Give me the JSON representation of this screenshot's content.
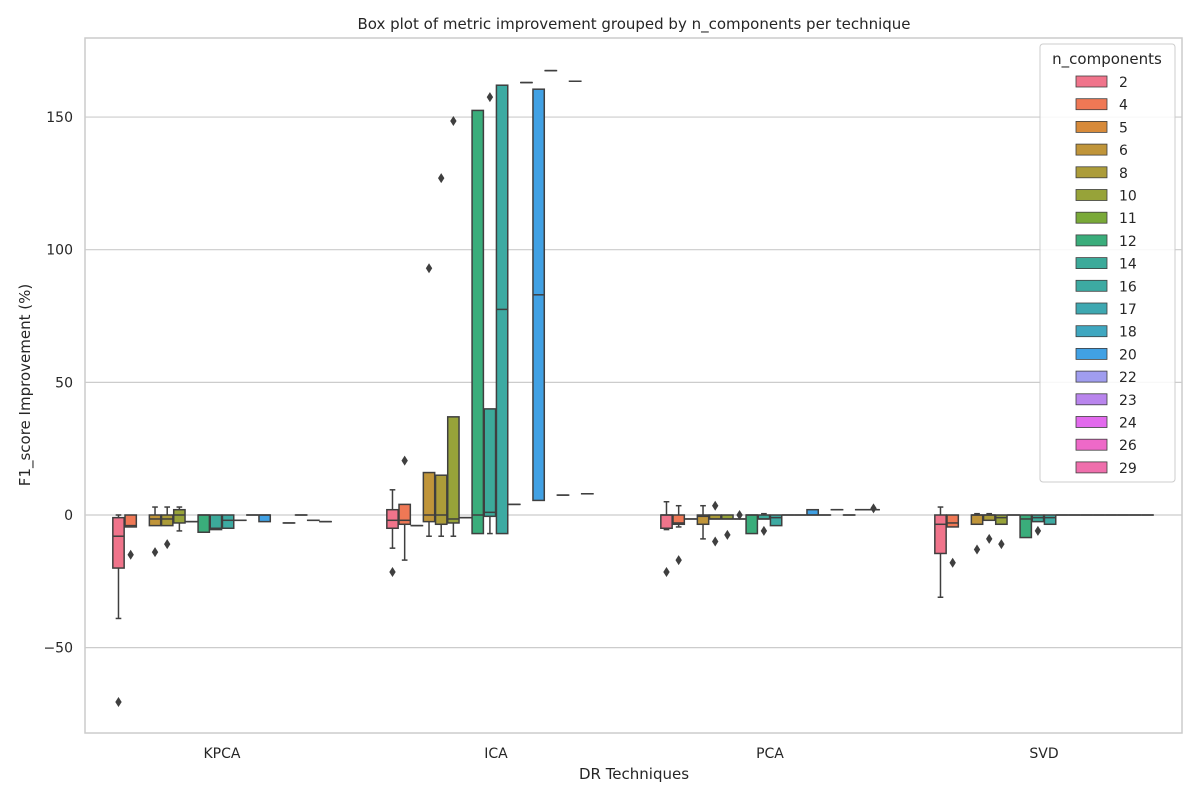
{
  "chart_data": {
    "type": "box",
    "title": "Box plot of metric improvement grouped by n_components per technique",
    "xlabel": "DR Techniques",
    "ylabel": "F1_score Improvement (%)",
    "ylim": [
      -82,
      180
    ],
    "yticks": [
      -50,
      0,
      50,
      100,
      150
    ],
    "ytick_labels": [
      "−50",
      "0",
      "50",
      "100",
      "150"
    ],
    "grid": true,
    "legend": {
      "title": "n_components",
      "placement": "top-right",
      "entries": [
        {
          "label": "2",
          "color": "#f77189"
        },
        {
          "label": "4",
          "color": "#f7754f"
        },
        {
          "label": "5",
          "color": "#dc8932"
        },
        {
          "label": "6",
          "color": "#c39532"
        },
        {
          "label": "8",
          "color": "#ae9d31"
        },
        {
          "label": "10",
          "color": "#97a431"
        },
        {
          "label": "11",
          "color": "#77ab31"
        },
        {
          "label": "12",
          "color": "#33b07a"
        },
        {
          "label": "14",
          "color": "#35ad9c"
        },
        {
          "label": "16",
          "color": "#36ada4"
        },
        {
          "label": "17",
          "color": "#37abb4"
        },
        {
          "label": "18",
          "color": "#38a9c5"
        },
        {
          "label": "20",
          "color": "#3ba3ec"
        },
        {
          "label": "22",
          "color": "#9f9cf5"
        },
        {
          "label": "23",
          "color": "#bb83f4"
        },
        {
          "label": "24",
          "color": "#e866f4"
        },
        {
          "label": "26",
          "color": "#f565cc"
        },
        {
          "label": "29",
          "color": "#f66bad"
        }
      ]
    },
    "categories": [
      "KPCA",
      "ICA",
      "PCA",
      "SVD"
    ],
    "groups": [
      {
        "technique": "KPCA",
        "boxes": [
          {
            "n": "2",
            "min": -39,
            "q1": -20,
            "median": -8,
            "q3": -1,
            "max": 0,
            "outliers": [
              -70.5
            ]
          },
          {
            "n": "4",
            "min": -4.5,
            "q1": -4.5,
            "median": -4,
            "q3": 0,
            "max": 0,
            "outliers": [
              -15
            ]
          },
          {
            "n": "6",
            "min": -4,
            "q1": -4,
            "median": -1.5,
            "q3": 0,
            "max": 3,
            "outliers": [
              -14
            ]
          },
          {
            "n": "8",
            "min": -4,
            "q1": -4,
            "median": -1.5,
            "q3": 0,
            "max": 3,
            "outliers": [
              -11
            ]
          },
          {
            "n": "10",
            "min": -6,
            "q1": -3,
            "median": 0,
            "q3": 2,
            "max": 3,
            "outliers": []
          },
          {
            "n": "11",
            "min": -2.5,
            "q1": -2.5,
            "median": -2.5,
            "q3": -2.5,
            "max": -2.5,
            "outliers": []
          },
          {
            "n": "12",
            "min": -6.5,
            "q1": -6.5,
            "median": 0,
            "q3": 0,
            "max": 0,
            "outliers": []
          },
          {
            "n": "14",
            "min": -5.5,
            "q1": -5.5,
            "median": -5,
            "q3": 0,
            "max": 0,
            "outliers": []
          },
          {
            "n": "16",
            "min": -5,
            "q1": -5,
            "median": -2,
            "q3": 0,
            "max": 0,
            "outliers": []
          },
          {
            "n": "17",
            "min": -2,
            "q1": -2,
            "median": -2,
            "q3": -2,
            "max": -2,
            "outliers": []
          },
          {
            "n": "18",
            "min": 0,
            "q1": 0,
            "median": 0,
            "q3": 0,
            "max": 0,
            "outliers": []
          },
          {
            "n": "20",
            "min": -2.5,
            "q1": -2.5,
            "median": 0,
            "q3": 0,
            "max": 0,
            "outliers": []
          },
          {
            "n": "23",
            "min": -3,
            "q1": -3,
            "median": -3,
            "q3": -3,
            "max": -3,
            "outliers": []
          },
          {
            "n": "24",
            "min": 0,
            "q1": 0,
            "median": 0,
            "q3": 0,
            "max": 0,
            "outliers": []
          },
          {
            "n": "26",
            "min": -2,
            "q1": -2,
            "median": -2,
            "q3": -2,
            "max": -2,
            "outliers": []
          },
          {
            "n": "29",
            "min": -2.5,
            "q1": -2.5,
            "median": -2.5,
            "q3": -2.5,
            "max": -2.5,
            "outliers": []
          }
        ]
      },
      {
        "technique": "ICA",
        "boxes": [
          {
            "n": "2",
            "min": -12.5,
            "q1": -5,
            "median": -2,
            "q3": 2,
            "max": 9.5,
            "outliers": [
              -21.5
            ]
          },
          {
            "n": "4",
            "min": -17,
            "q1": -3.5,
            "median": -2,
            "q3": 4,
            "max": 4,
            "outliers": [
              20.5
            ]
          },
          {
            "n": "5",
            "min": -4,
            "q1": -4,
            "median": -4,
            "q3": -4,
            "max": -4,
            "outliers": []
          },
          {
            "n": "6",
            "min": -8,
            "q1": -2.5,
            "median": 0,
            "q3": 16,
            "max": 16,
            "outliers": [
              93
            ]
          },
          {
            "n": "8",
            "min": -8,
            "q1": -3.5,
            "median": 0,
            "q3": 15,
            "max": 15,
            "outliers": [
              127
            ]
          },
          {
            "n": "10",
            "min": -8,
            "q1": -3,
            "median": -1.5,
            "q3": 37,
            "max": 37,
            "outliers": [
              148.5
            ]
          },
          {
            "n": "11",
            "min": -1,
            "q1": -1,
            "median": -1,
            "q3": -1,
            "max": -1,
            "outliers": []
          },
          {
            "n": "12",
            "min": -7,
            "q1": -7,
            "median": 0,
            "q3": 152.5,
            "max": 152.5,
            "outliers": []
          },
          {
            "n": "14",
            "min": -7,
            "q1": -0.5,
            "median": 1,
            "q3": 40,
            "max": 40,
            "outliers": [
              157.5
            ]
          },
          {
            "n": "16",
            "min": -7,
            "q1": -7,
            "median": 77.5,
            "q3": 162,
            "max": 162,
            "outliers": []
          },
          {
            "n": "17",
            "min": 4,
            "q1": 4,
            "median": 4,
            "q3": 4,
            "max": 4,
            "outliers": []
          },
          {
            "n": "18",
            "min": 163,
            "q1": 163,
            "median": 163,
            "q3": 163,
            "max": 163,
            "outliers": []
          },
          {
            "n": "20",
            "min": 5.5,
            "q1": 5.5,
            "median": 83,
            "q3": 160.5,
            "max": 160.5,
            "outliers": []
          },
          {
            "n": "22",
            "min": 167.5,
            "q1": 167.5,
            "median": 167.5,
            "q3": 167.5,
            "max": 167.5,
            "outliers": []
          },
          {
            "n": "23",
            "min": 7.5,
            "q1": 7.5,
            "median": 7.5,
            "q3": 7.5,
            "max": 7.5,
            "outliers": []
          },
          {
            "n": "24",
            "min": 163.5,
            "q1": 163.5,
            "median": 163.5,
            "q3": 163.5,
            "max": 163.5,
            "outliers": []
          },
          {
            "n": "26",
            "min": 8,
            "q1": 8,
            "median": 8,
            "q3": 8,
            "max": 8,
            "outliers": []
          }
        ]
      },
      {
        "technique": "PCA",
        "boxes": [
          {
            "n": "2",
            "min": -5.5,
            "q1": -5,
            "median": 0,
            "q3": 0,
            "max": 5,
            "outliers": [
              -21.5
            ]
          },
          {
            "n": "4",
            "min": -4.5,
            "q1": -3.5,
            "median": -3,
            "q3": 0,
            "max": 3.5,
            "outliers": [
              -17
            ]
          },
          {
            "n": "5",
            "min": -1.5,
            "q1": -1.5,
            "median": -1.5,
            "q3": -1.5,
            "max": -1.5,
            "outliers": []
          },
          {
            "n": "6",
            "min": -9,
            "q1": -3.5,
            "median": -0.5,
            "q3": 0,
            "max": 3.5,
            "outliers": []
          },
          {
            "n": "8",
            "min": -1.5,
            "q1": -1.5,
            "median": -1.5,
            "q3": 0,
            "max": 0,
            "outliers": [
              3.5,
              -10
            ]
          },
          {
            "n": "10",
            "min": -1.5,
            "q1": -1.5,
            "median": -1.5,
            "q3": 0,
            "max": 0,
            "outliers": [
              -7.5
            ]
          },
          {
            "n": "11",
            "min": -1.5,
            "q1": -1.5,
            "median": -1.5,
            "q3": -1.5,
            "max": -1.5,
            "outliers": [
              0
            ]
          },
          {
            "n": "12",
            "min": -7,
            "q1": -7,
            "median": 0,
            "q3": 0,
            "max": 0,
            "outliers": []
          },
          {
            "n": "14",
            "min": -1.5,
            "q1": -1.5,
            "median": -1.5,
            "q3": 0,
            "max": 0.5,
            "outliers": [
              -6
            ]
          },
          {
            "n": "16",
            "min": -4,
            "q1": -4,
            "median": -1,
            "q3": 0,
            "max": 0,
            "outliers": []
          },
          {
            "n": "17",
            "min": 0,
            "q1": 0,
            "median": 0,
            "q3": 0,
            "max": 0,
            "outliers": []
          },
          {
            "n": "18",
            "min": 0,
            "q1": 0,
            "median": 0,
            "q3": 0,
            "max": 0,
            "outliers": []
          },
          {
            "n": "20",
            "min": 0,
            "q1": 0,
            "median": 0,
            "q3": 2,
            "max": 2,
            "outliers": []
          },
          {
            "n": "22",
            "min": 0,
            "q1": 0,
            "median": 0,
            "q3": 0,
            "max": 0,
            "outliers": []
          },
          {
            "n": "23",
            "min": 2,
            "q1": 2,
            "median": 2,
            "q3": 2,
            "max": 2,
            "outliers": []
          },
          {
            "n": "24",
            "min": 0,
            "q1": 0,
            "median": 0,
            "q3": 0,
            "max": 0,
            "outliers": []
          },
          {
            "n": "26",
            "min": 2,
            "q1": 2,
            "median": 2,
            "q3": 2,
            "max": 2,
            "outliers": []
          },
          {
            "n": "29",
            "min": 2,
            "q1": 2,
            "median": 2,
            "q3": 2,
            "max": 2,
            "outliers": [
              2.5
            ]
          }
        ]
      },
      {
        "technique": "SVD",
        "boxes": [
          {
            "n": "2",
            "min": -31,
            "q1": -14.5,
            "median": -3.5,
            "q3": 0,
            "max": 3,
            "outliers": []
          },
          {
            "n": "4",
            "min": -4.5,
            "q1": -4.5,
            "median": -3,
            "q3": 0,
            "max": 0,
            "outliers": [
              -18
            ]
          },
          {
            "n": "6",
            "min": -3.5,
            "q1": -3.5,
            "median": 0,
            "q3": 0,
            "max": 0.5,
            "outliers": [
              -13
            ]
          },
          {
            "n": "8",
            "min": -2,
            "q1": -2,
            "median": 0,
            "q3": 0,
            "max": 0.5,
            "outliers": [
              -9
            ]
          },
          {
            "n": "10",
            "min": -3.5,
            "q1": -3.5,
            "median": -1,
            "q3": 0,
            "max": 0,
            "outliers": [
              -11
            ]
          },
          {
            "n": "11",
            "min": 0,
            "q1": 0,
            "median": 0,
            "q3": 0,
            "max": 0,
            "outliers": []
          },
          {
            "n": "12",
            "min": -8.5,
            "q1": -8.5,
            "median": -1.5,
            "q3": 0,
            "max": 0,
            "outliers": []
          },
          {
            "n": "14",
            "min": -2.5,
            "q1": -2.5,
            "median": -1,
            "q3": 0,
            "max": 0,
            "outliers": [
              -6
            ]
          },
          {
            "n": "16",
            "min": -3.5,
            "q1": -3.5,
            "median": -1,
            "q3": 0,
            "max": 0,
            "outliers": []
          },
          {
            "n": "17",
            "min": 0,
            "q1": 0,
            "median": 0,
            "q3": 0,
            "max": 0,
            "outliers": []
          },
          {
            "n": "18",
            "min": 0,
            "q1": 0,
            "median": 0,
            "q3": 0,
            "max": 0,
            "outliers": []
          },
          {
            "n": "20",
            "min": 0,
            "q1": 0,
            "median": 0,
            "q3": 0,
            "max": 0,
            "outliers": []
          },
          {
            "n": "22",
            "min": 0,
            "q1": 0,
            "median": 0,
            "q3": 0,
            "max": 0,
            "outliers": []
          },
          {
            "n": "23",
            "min": 0,
            "q1": 0,
            "median": 0,
            "q3": 0,
            "max": 0,
            "outliers": []
          },
          {
            "n": "24",
            "min": 0,
            "q1": 0,
            "median": 0,
            "q3": 0,
            "max": 0,
            "outliers": []
          },
          {
            "n": "26",
            "min": 0,
            "q1": 0,
            "median": 0,
            "q3": 0,
            "max": 0,
            "outliers": []
          },
          {
            "n": "29",
            "min": 0,
            "q1": 0,
            "median": 0,
            "q3": 0,
            "max": 0,
            "outliers": []
          }
        ]
      }
    ]
  }
}
